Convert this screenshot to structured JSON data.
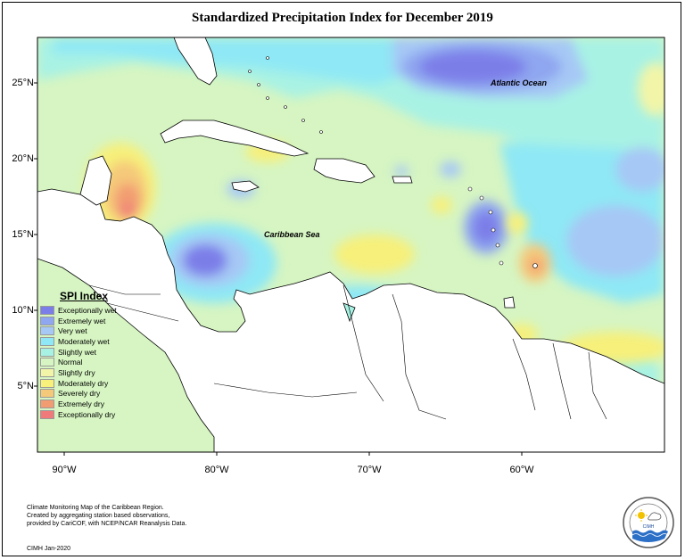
{
  "title": "Standardized Precipitation Index for December 2019",
  "map_labels": {
    "ocean": "Atlantic Ocean",
    "sea": "Caribbean Sea"
  },
  "lat_ticks": [
    "25°N",
    "20°N",
    "15°N",
    "10°N",
    "5°N"
  ],
  "lon_ticks": [
    "90°W",
    "80°W",
    "70°W",
    "60°W"
  ],
  "legend": {
    "title": "SPI Index",
    "items": [
      {
        "label": "Exceptionally wet",
        "color": "#7b7ee8"
      },
      {
        "label": "Extremely wet",
        "color": "#8fa6f0"
      },
      {
        "label": "Very wet",
        "color": "#a6c8f5"
      },
      {
        "label": "Moderately wet",
        "color": "#8ee8f5"
      },
      {
        "label": "Slightly wet",
        "color": "#a8f2e4"
      },
      {
        "label": "Normal",
        "color": "#d6f5c2"
      },
      {
        "label": "Slightly dry",
        "color": "#f2f5a8"
      },
      {
        "label": "Moderately dry",
        "color": "#f7f07a"
      },
      {
        "label": "Severely dry",
        "color": "#f5c97a"
      },
      {
        "label": "Extremely dry",
        "color": "#f29c72"
      },
      {
        "label": "Exceptionally dry",
        "color": "#f07a7a"
      }
    ]
  },
  "footer": {
    "lines": [
      "Climate Monitoring Map of the Caribbean Region.",
      "Created by aggregating station based observations,",
      "provided by CariCOF, with NCEP/NCAR Reanalysis Data."
    ],
    "date": "CIMH Jan-2020"
  },
  "logo": {
    "text": "CIMH"
  }
}
